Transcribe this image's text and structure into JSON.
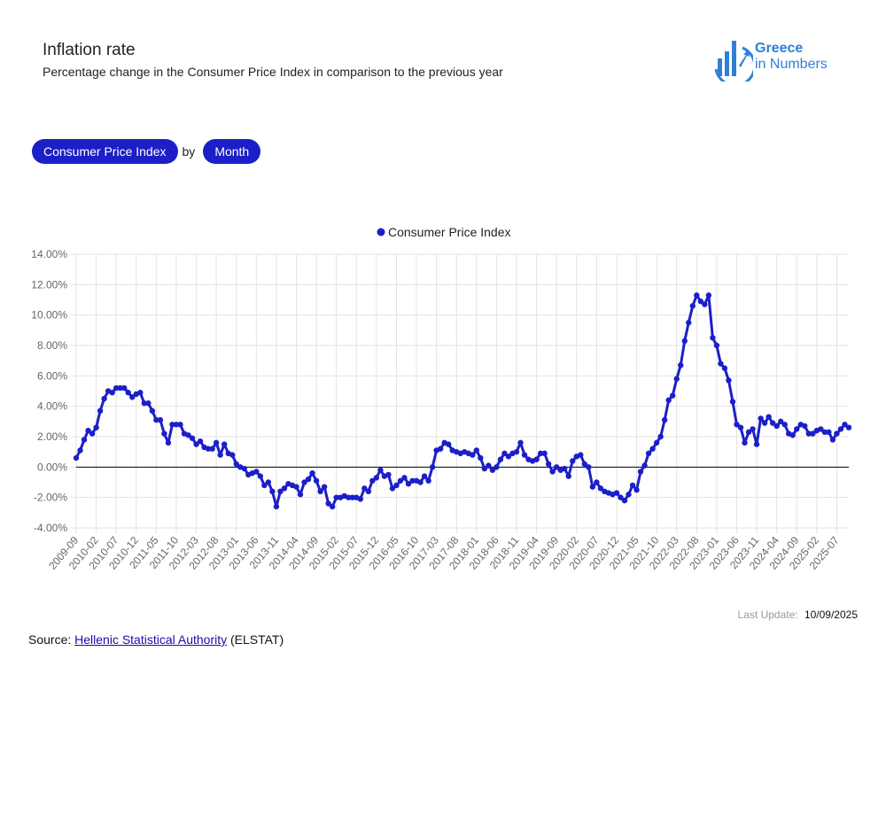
{
  "header": {
    "title": "Inflation rate",
    "subtitle": "Percentage change in the Consumer Price Index in comparison to the previous year"
  },
  "logo": {
    "line1": "Greece",
    "line2": "in Numbers",
    "color": "#2f7fd6"
  },
  "filters": {
    "indicator": "Consumer Price Index",
    "by": "by",
    "period": "Month",
    "accent": "#1c1fc7"
  },
  "footer": {
    "last_update_label": "Last Update:",
    "last_update_value": "10/09/2025",
    "source_prefix": "Source:",
    "source_link": "Hellenic Statistical Authority",
    "source_suffix": "(ELSTAT)"
  },
  "chart_data": {
    "type": "line",
    "legend": "top-center",
    "grid": true,
    "series": [
      {
        "name": "Consumer Price Index",
        "color": "#1c1fc7"
      }
    ],
    "ylim": [
      -4,
      14
    ],
    "y_ticks": [
      "14.00%",
      "12.00%",
      "10.00%",
      "8.00%",
      "6.00%",
      "4.00%",
      "2.00%",
      "0.00%",
      "-2.00%",
      "-4.00%"
    ],
    "x_start": "2009-09",
    "x_tick_labels": [
      "2009-09",
      "2010-02",
      "2010-07",
      "2010-12",
      "2011-05",
      "2011-10",
      "2012-03",
      "2012-08",
      "2013-01",
      "2013-06",
      "2013-11",
      "2014-04",
      "2014-09",
      "2015-02",
      "2015-07",
      "2015-12",
      "2016-05",
      "2016-10",
      "2017-03",
      "2017-08",
      "2018-01",
      "2018-06",
      "2018-11",
      "2019-04",
      "2019-09",
      "2020-02",
      "2020-07",
      "2020-12",
      "2021-05",
      "2021-10",
      "2022-03",
      "2022-08",
      "2023-01",
      "2023-06",
      "2023-11",
      "2024-04",
      "2024-09",
      "2025-02",
      "2025-07"
    ],
    "values": [
      0.6,
      1.1,
      1.8,
      2.4,
      2.2,
      2.6,
      3.7,
      4.5,
      5.0,
      4.9,
      5.2,
      5.2,
      5.2,
      4.9,
      4.6,
      4.8,
      4.9,
      4.2,
      4.2,
      3.7,
      3.1,
      3.1,
      2.2,
      1.6,
      2.8,
      2.8,
      2.8,
      2.2,
      2.1,
      1.9,
      1.5,
      1.7,
      1.3,
      1.2,
      1.2,
      1.6,
      0.8,
      1.5,
      0.9,
      0.8,
      0.2,
      0.0,
      -0.1,
      -0.5,
      -0.4,
      -0.3,
      -0.6,
      -1.2,
      -1.0,
      -1.6,
      -2.6,
      -1.6,
      -1.4,
      -1.1,
      -1.2,
      -1.3,
      -1.8,
      -1.0,
      -0.8,
      -0.4,
      -0.9,
      -1.6,
      -1.3,
      -2.4,
      -2.6,
      -2.0,
      -2.0,
      -1.9,
      -2.0,
      -2.0,
      -2.0,
      -2.1,
      -1.4,
      -1.6,
      -0.9,
      -0.7,
      -0.2,
      -0.6,
      -0.5,
      -1.4,
      -1.2,
      -0.9,
      -0.7,
      -1.1,
      -0.9,
      -0.9,
      -1.0,
      -0.6,
      -0.9,
      0.0,
      1.1,
      1.2,
      1.6,
      1.5,
      1.1,
      1.0,
      0.9,
      1.0,
      0.9,
      0.8,
      1.1,
      0.6,
      -0.1,
      0.1,
      -0.2,
      0.0,
      0.5,
      0.9,
      0.7,
      0.9,
      1.0,
      1.6,
      0.8,
      0.5,
      0.4,
      0.5,
      0.9,
      0.9,
      0.2,
      -0.3,
      0.0,
      -0.2,
      -0.1,
      -0.6,
      0.4,
      0.7,
      0.8,
      0.2,
      0.0,
      -1.3,
      -1.0,
      -1.4,
      -1.6,
      -1.7,
      -1.8,
      -1.7,
      -2.0,
      -2.2,
      -1.8,
      -1.2,
      -1.5,
      -0.3,
      0.1,
      0.9,
      1.2,
      1.6,
      2.0,
      3.1,
      4.4,
      4.7,
      5.8,
      6.7,
      8.3,
      9.5,
      10.6,
      11.3,
      10.9,
      10.7,
      11.3,
      8.5,
      8.0,
      6.8,
      6.5,
      5.7,
      4.3,
      2.8,
      2.6,
      1.6,
      2.3,
      2.5,
      1.5,
      3.2,
      2.9,
      3.3,
      2.9,
      2.7,
      3.0,
      2.8,
      2.2,
      2.1,
      2.5,
      2.8,
      2.7,
      2.2,
      2.2,
      2.4,
      2.5,
      2.3,
      2.3,
      1.8,
      2.2,
      2.5,
      2.8,
      2.6
    ]
  }
}
